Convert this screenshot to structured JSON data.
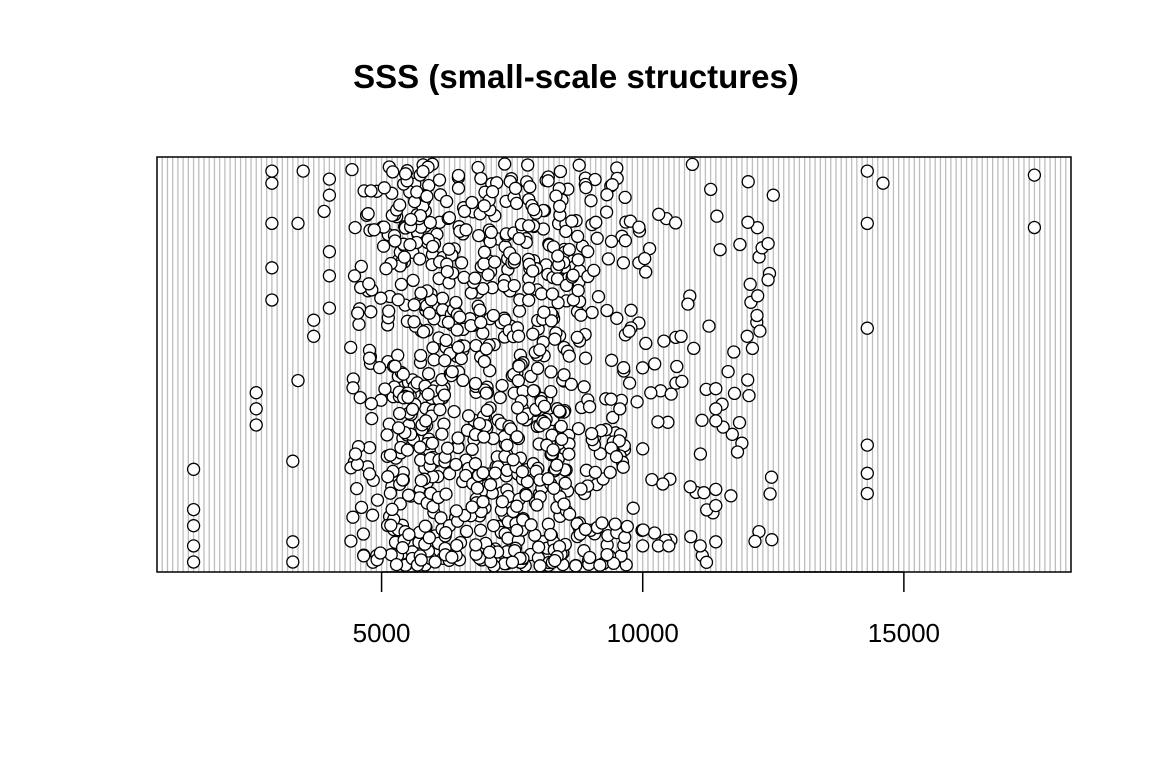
{
  "chart_data": {
    "type": "scatter",
    "title": "SSS (small-scale structures)",
    "xlabel": "",
    "ylabel": "",
    "xlim": [
      700,
      18200
    ],
    "ylim": [
      0,
      1
    ],
    "x_ticks": [
      5000,
      10000,
      15000
    ],
    "x_tick_labels": [
      "5000",
      "10000",
      "15000"
    ],
    "show_y_axis": false,
    "grid": "vertical lines",
    "grid_color": "#bebebe",
    "grid_x_start": 800,
    "grid_x_step": 100,
    "marker": {
      "shape": "circle",
      "fill": "#ffffff",
      "stroke": "#000000"
    },
    "clusters": [
      {
        "x_min": 5100,
        "x_max": 6200,
        "count": 260
      },
      {
        "x_min": 6200,
        "x_max": 7500,
        "count": 240
      },
      {
        "x_min": 7500,
        "x_max": 8600,
        "count": 240
      },
      {
        "x_min": 8600,
        "x_max": 9700,
        "count": 120
      },
      {
        "x_min": 4400,
        "x_max": 5100,
        "count": 60
      },
      {
        "x_min": 9700,
        "x_max": 12500,
        "count": 90
      }
    ],
    "points": [
      {
        "x": 1400,
        "y": 0.24
      },
      {
        "x": 1400,
        "y": 0.14
      },
      {
        "x": 1400,
        "y": 0.1
      },
      {
        "x": 1400,
        "y": 0.05
      },
      {
        "x": 1400,
        "y": 0.01
      },
      {
        "x": 2600,
        "y": 0.43
      },
      {
        "x": 2600,
        "y": 0.39
      },
      {
        "x": 2600,
        "y": 0.35
      },
      {
        "x": 2900,
        "y": 0.98
      },
      {
        "x": 2900,
        "y": 0.95
      },
      {
        "x": 2900,
        "y": 0.85
      },
      {
        "x": 2900,
        "y": 0.74
      },
      {
        "x": 2900,
        "y": 0.66
      },
      {
        "x": 3300,
        "y": 0.26
      },
      {
        "x": 3300,
        "y": 0.06
      },
      {
        "x": 3300,
        "y": 0.01
      },
      {
        "x": 3400,
        "y": 0.46
      },
      {
        "x": 3400,
        "y": 0.85
      },
      {
        "x": 3500,
        "y": 0.98
      },
      {
        "x": 3700,
        "y": 0.61
      },
      {
        "x": 3700,
        "y": 0.57
      },
      {
        "x": 3900,
        "y": 0.88
      },
      {
        "x": 4000,
        "y": 0.96
      },
      {
        "x": 4000,
        "y": 0.92
      },
      {
        "x": 4000,
        "y": 0.72
      },
      {
        "x": 4000,
        "y": 0.64
      },
      {
        "x": 4000,
        "y": 0.78
      },
      {
        "x": 14300,
        "y": 0.98
      },
      {
        "x": 14300,
        "y": 0.85
      },
      {
        "x": 14300,
        "y": 0.59
      },
      {
        "x": 14300,
        "y": 0.3
      },
      {
        "x": 14300,
        "y": 0.23
      },
      {
        "x": 14300,
        "y": 0.18
      },
      {
        "x": 14600,
        "y": 0.95
      },
      {
        "x": 17500,
        "y": 0.97
      },
      {
        "x": 17500,
        "y": 0.84
      },
      {
        "x": 10000,
        "y": 0.05
      },
      {
        "x": 10300,
        "y": 0.05
      },
      {
        "x": 10500,
        "y": 0.05
      },
      {
        "x": 11100,
        "y": 0.05
      },
      {
        "x": 11400,
        "y": 0.06
      },
      {
        "x": 11400,
        "y": 0.15
      },
      {
        "x": 11400,
        "y": 0.19
      },
      {
        "x": 11400,
        "y": 0.44
      },
      {
        "x": 11400,
        "y": 0.39
      },
      {
        "x": 11400,
        "y": 0.36
      },
      {
        "x": 12000,
        "y": 0.57
      },
      {
        "x": 12100,
        "y": 0.54
      },
      {
        "x": 12400,
        "y": 0.8
      },
      {
        "x": 12400,
        "y": 0.71
      },
      {
        "x": 12500,
        "y": 0.92
      }
    ]
  }
}
